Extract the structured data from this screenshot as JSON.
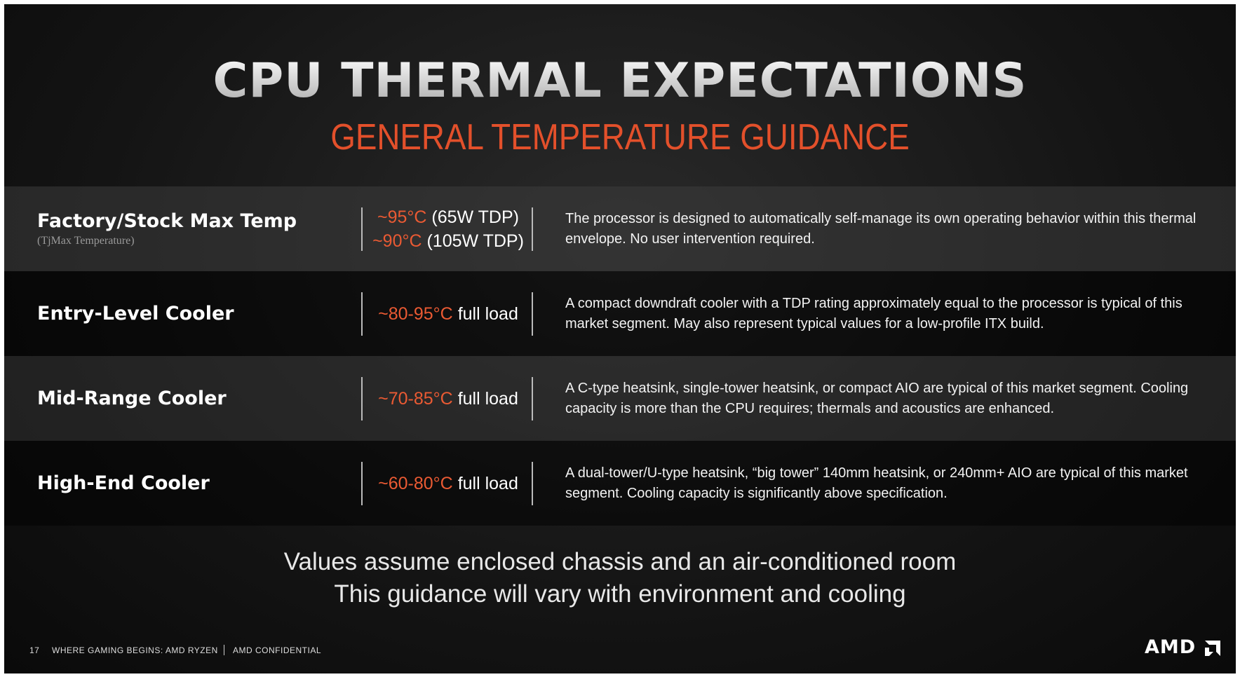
{
  "header": {
    "title": "CPU THERMAL EXPECTATIONS",
    "subtitle": "GENERAL TEMPERATURE GUIDANCE"
  },
  "rows": [
    {
      "label": "Factory/Stock Max Temp",
      "sublabel": "(TjMax Temperature)",
      "temps": [
        {
          "range": "~95°C",
          "note": "(65W TDP)"
        },
        {
          "range": "~90°C",
          "note": "(105W TDP)"
        }
      ],
      "description": "The processor is designed to automatically self-manage its own operating behavior within this thermal envelope. No user intervention required."
    },
    {
      "label": "Entry-Level Cooler",
      "temps": [
        {
          "range": "~80-95°C",
          "note": "full load"
        }
      ],
      "description": "A compact downdraft cooler with a TDP rating approximately equal to the processor is typical of this market segment. May also represent typical values for a low-profile ITX build."
    },
    {
      "label": "Mid-Range Cooler",
      "temps": [
        {
          "range": "~70-85°C",
          "note": "full load"
        }
      ],
      "description": "A C-type heatsink, single-tower heatsink, or compact AIO are typical of this market segment. Cooling capacity is more than the CPU requires; thermals and acoustics are enhanced."
    },
    {
      "label": "High-End Cooler",
      "temps": [
        {
          "range": "~60-80°C",
          "note": "full load"
        }
      ],
      "description": "A dual-tower/U-type heatsink, “big tower” 140mm heatsink, or 240mm+ AIO are typical of this market segment. Cooling capacity is significantly above specification."
    }
  ],
  "notes": [
    "Values assume enclosed chassis and an air-conditioned room",
    "This guidance will vary with environment and cooling"
  ],
  "footer": {
    "page": "17",
    "text": "WHERE GAMING BEGINS: AMD RYZEN",
    "confidential": "AMD CONFIDENTIAL",
    "logo": "AMD"
  }
}
